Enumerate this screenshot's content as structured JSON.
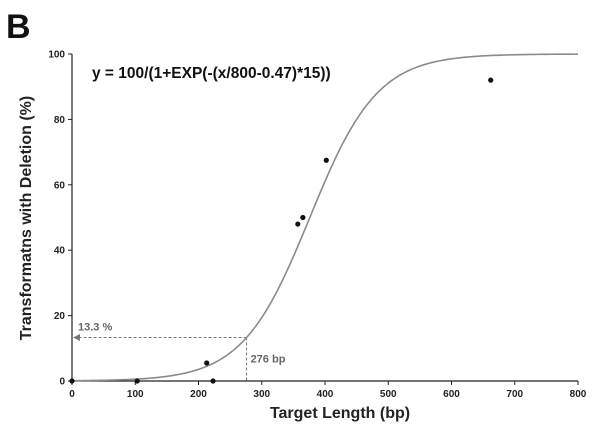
{
  "panel_label": "B",
  "colors": {
    "axis": "#222222",
    "curve": "#8a8a8a",
    "points": "#111111",
    "annotation": "#666666"
  },
  "chart_data": {
    "type": "scatter",
    "title": "",
    "xlabel": "Target Length (bp)",
    "ylabel": "Transformatns with Deletion (%)",
    "xlim": [
      0,
      800
    ],
    "ylim": [
      0,
      100
    ],
    "xticks": [
      0,
      100,
      200,
      300,
      400,
      500,
      600,
      700,
      800
    ],
    "yticks": [
      0,
      20,
      40,
      60,
      80,
      100
    ],
    "grid": false,
    "legend": "none",
    "equation": "y = 100/(1+EXP(-(x/800-0.47)*15))",
    "fit": {
      "type": "logistic",
      "scale": 800,
      "midpoint": 0.47,
      "slope": 15,
      "max": 100
    },
    "points": [
      {
        "x": 0,
        "y": 0
      },
      {
        "x": 103,
        "y": 0
      },
      {
        "x": 213,
        "y": 5.5
      },
      {
        "x": 223,
        "y": 0
      },
      {
        "x": 357,
        "y": 48
      },
      {
        "x": 365,
        "y": 50
      },
      {
        "x": 402,
        "y": 67.5
      },
      {
        "x": 662,
        "y": 92
      }
    ],
    "annotations": [
      {
        "text": "13.3 %",
        "x": 276,
        "y": 13.3
      },
      {
        "text": "276 bp",
        "x": 276,
        "y": 13.3
      }
    ]
  }
}
